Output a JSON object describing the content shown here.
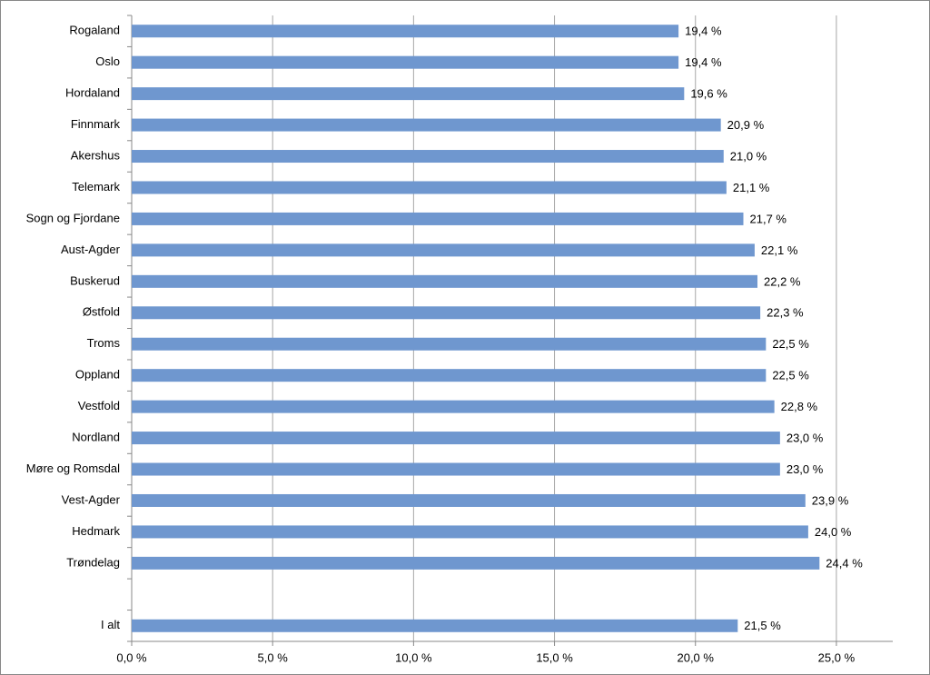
{
  "chart_data": {
    "type": "barh",
    "categories": [
      "Rogaland",
      "Oslo",
      "Hordaland",
      "Finnmark",
      "Akershus",
      "Telemark",
      "Sogn og Fjordane",
      "Aust-Agder",
      "Buskerud",
      "Østfold",
      "Troms",
      "Oppland",
      "Vestfold",
      "Nordland",
      "Møre og Romsdal",
      "Vest-Agder",
      "Hedmark",
      "Trøndelag",
      null,
      "I alt"
    ],
    "values": [
      19.4,
      19.4,
      19.6,
      20.9,
      21.0,
      21.1,
      21.7,
      22.1,
      22.2,
      22.3,
      22.5,
      22.5,
      22.8,
      23.0,
      23.0,
      23.9,
      24.0,
      24.4,
      null,
      21.5
    ],
    "value_labels": [
      "19,4 %",
      "19,4 %",
      "19,6 %",
      "20,9 %",
      "21,0 %",
      "21,1 %",
      "21,7 %",
      "22,1 %",
      "22,2 %",
      "22,3 %",
      "22,5 %",
      "22,5 %",
      "22,8 %",
      "23,0 %",
      "23,0 %",
      "23,9 %",
      "24,0 %",
      "24,4 %",
      null,
      "21,5 %"
    ],
    "color": "#6f97cf",
    "xlim": [
      0,
      27
    ],
    "xticks": [
      {
        "value": 0,
        "label": "0,0 %"
      },
      {
        "value": 5,
        "label": "5,0 %"
      },
      {
        "value": 10,
        "label": "10,0 %"
      },
      {
        "value": 15,
        "label": "15,0 %"
      },
      {
        "value": 20,
        "label": "20,0 %"
      },
      {
        "value": 25,
        "label": "25,0 %"
      }
    ],
    "grid": true
  }
}
